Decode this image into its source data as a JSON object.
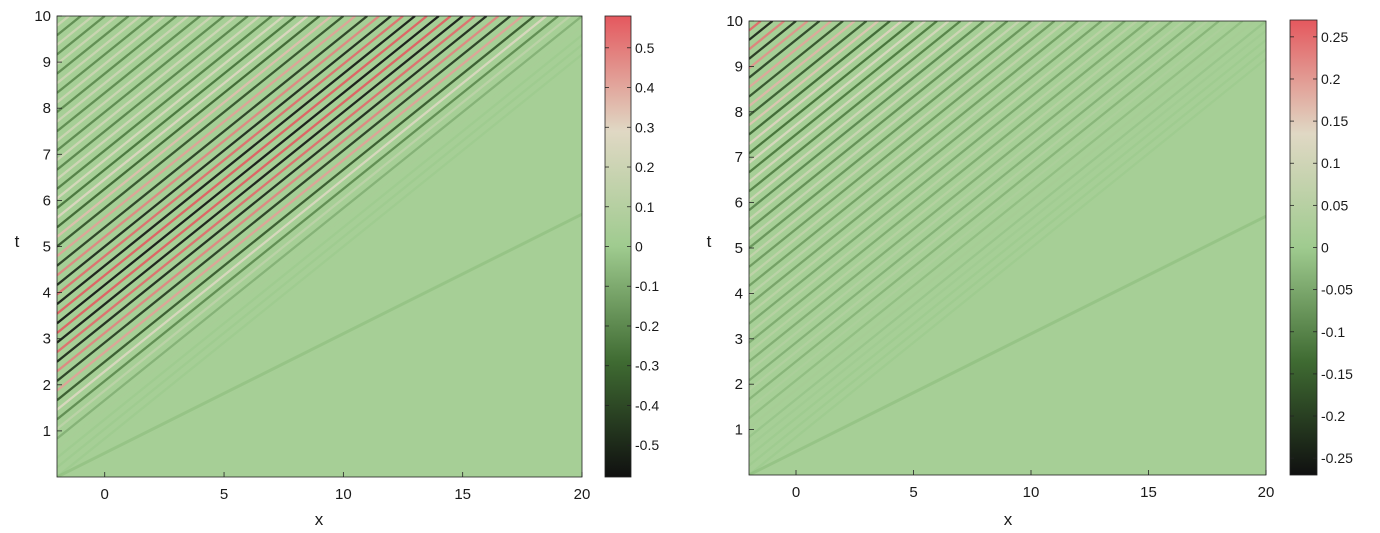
{
  "chart_data": [
    {
      "type": "heatmap",
      "title": "",
      "xlabel": "x",
      "ylabel": "t",
      "xlim": [
        -2,
        20
      ],
      "ylim": [
        0,
        10
      ],
      "xticks": [
        "0",
        "5",
        "10",
        "15",
        "20"
      ],
      "yticks": [
        "1",
        "2",
        "3",
        "4",
        "5",
        "6",
        "7",
        "8",
        "9",
        "10"
      ],
      "colorbar": {
        "range": [
          -0.58,
          0.58
        ],
        "ticks": [
          "-0.5",
          "-0.4",
          "-0.3",
          "-0.2",
          "-0.1",
          "0",
          "0.1",
          "0.2",
          "0.3",
          "0.4",
          "0.5"
        ],
        "colormap": [
          "#101010",
          "#3f6b32",
          "#9fcb8f",
          "#e0d8c4",
          "#e4585e"
        ]
      },
      "pattern": {
        "description": "oscillating stripes inside the wedge between x=-2 and the line x=-2+2.2t, strongest band near x=-2+1.2t"
      }
    },
    {
      "type": "heatmap",
      "title": "",
      "xlabel": "x",
      "ylabel": "t",
      "xlim": [
        -2,
        20
      ],
      "ylim": [
        0,
        10
      ],
      "xticks": [
        "0",
        "5",
        "10",
        "15",
        "20"
      ],
      "yticks": [
        "1",
        "2",
        "3",
        "4",
        "5",
        "6",
        "7",
        "8",
        "9",
        "10"
      ],
      "colorbar": {
        "range": [
          -0.27,
          0.27
        ],
        "ticks": [
          "-0.25",
          "-0.2",
          "-0.15",
          "-0.1",
          "-0.05",
          "0",
          "0.05",
          "0.1",
          "0.15",
          "0.2",
          "0.25"
        ],
        "colormap": [
          "#101010",
          "#3f6b32",
          "#9fcb8f",
          "#e0d8c4",
          "#e4585e"
        ]
      },
      "pattern": {
        "description": "oscillating stripes inside the wedge between x=-2 and the line x=-2+2.2t, strongest near x=-2"
      }
    }
  ]
}
